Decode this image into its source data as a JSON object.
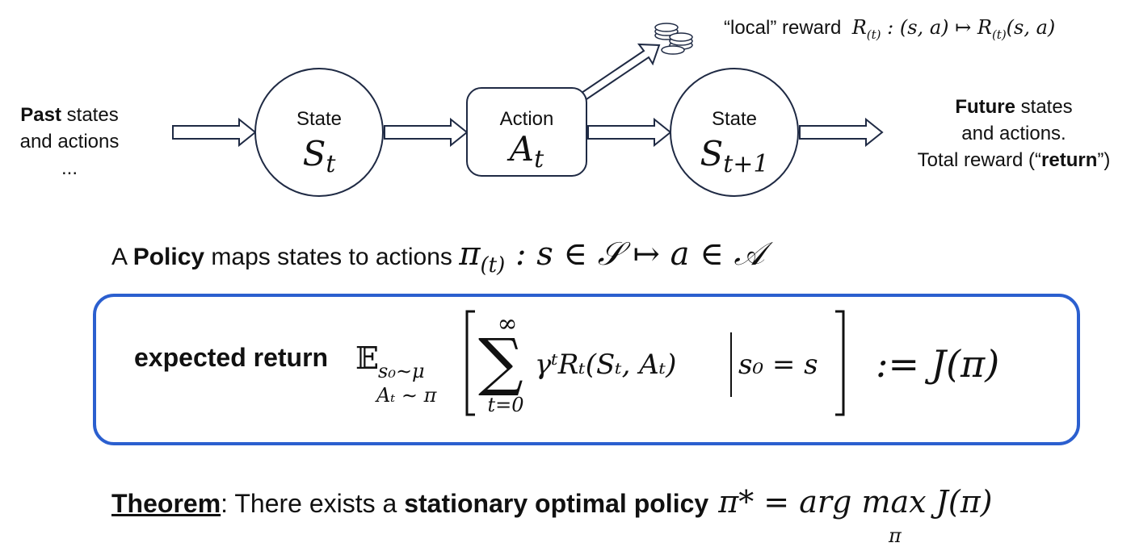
{
  "diagram": {
    "past": {
      "bold": "Past",
      "line1_rest": " states",
      "line2": "and actions",
      "line3": "..."
    },
    "future": {
      "bold": "Future",
      "line1_rest": " states",
      "line2": "and actions.",
      "line3_pre": "Total reward (“",
      "line3_bold": "return",
      "line3_post": "”)"
    },
    "state_t": {
      "label": "State",
      "symbol": "S",
      "sub": "t"
    },
    "action_t": {
      "label": "Action",
      "symbol": "A",
      "sub": "t"
    },
    "state_t1": {
      "label": "State",
      "symbol": "S",
      "sub": "t+1"
    },
    "reward": {
      "text": "“local” reward",
      "symbol": "R",
      "sub": "(t)",
      "mapping": " : (s, a) ↦ ",
      "symbol2": "R",
      "sub2": "(t)",
      "args": "(s, a)"
    },
    "coins_icon": "coins-icon",
    "colors": {
      "stroke": "#1f2a44",
      "box_border": "#2b5fcf"
    }
  },
  "policy": {
    "pre": "A ",
    "bold": "Policy",
    "text": "  maps states to actions ",
    "symbol": "π",
    "sub": "(t)",
    "math_rest": " : s ∈ 𝒮 ↦ a ∈ 𝒜"
  },
  "expected_return": {
    "label": "expected return",
    "expect_symbol": "𝔼",
    "expect_sub1": "s₀∼μ",
    "expect_sub2": "Aₜ ∼ π",
    "sum_symbol": "∑",
    "sum_upper": "∞",
    "sum_lower": "t=0",
    "summand": "γᵗRₜ(Sₜ, Aₜ)",
    "condition": "s₀ = s",
    "definition": ":= J(π)"
  },
  "theorem": {
    "label": "Theorem",
    "colon": ": There exists a ",
    "bold": "stationary optimal policy",
    "math": " π* = arg max J(π)",
    "argmax_sub": "π"
  }
}
